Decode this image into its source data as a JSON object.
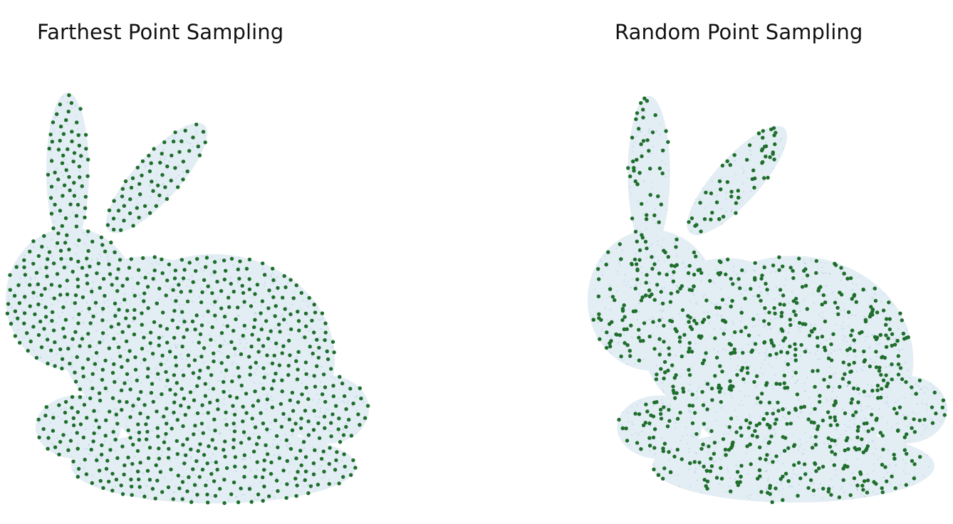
{
  "panels": [
    {
      "id": "fps",
      "title": "Farthest Point Sampling",
      "method": "farthest",
      "samples": 900
    },
    {
      "id": "rps",
      "title": "Random Point Sampling",
      "method": "random",
      "samples": 900
    }
  ],
  "colors": {
    "surface": "#e3edf4",
    "surface_points": "#9fbfd6",
    "sample_points": "#1f6e2c"
  }
}
